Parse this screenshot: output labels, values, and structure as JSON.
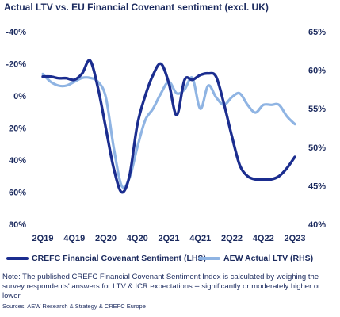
{
  "header": {
    "title": "Actual LTV vs. EU Financial Covenant sentiment (excl. UK)"
  },
  "chart_data": {
    "type": "line",
    "title": "Actual LTV vs. EU Financial Covenant sentiment (excl. UK)",
    "categories": [
      "2Q19",
      "3Q19",
      "4Q19",
      "1Q20",
      "2Q20",
      "3Q20",
      "4Q20",
      "1Q21",
      "2Q21",
      "3Q21",
      "4Q21",
      "1Q22",
      "2Q22",
      "3Q22",
      "4Q22",
      "1Q23",
      "2Q23"
    ],
    "x_tick_labels": [
      "2Q19",
      "4Q19",
      "2Q20",
      "4Q20",
      "2Q21",
      "4Q21",
      "2Q22",
      "4Q22",
      "2Q23"
    ],
    "left_axis": {
      "ticks": [
        -40,
        -20,
        0,
        20,
        40,
        60,
        80
      ],
      "tick_labels": [
        "-40%",
        "-20%",
        "0%",
        "20%",
        "40%",
        "60%",
        "80%"
      ],
      "range": [
        -40,
        80
      ],
      "inverted": true
    },
    "right_axis": {
      "ticks": [
        65,
        60,
        55,
        50,
        45,
        40
      ],
      "tick_labels": [
        "65%",
        "60%",
        "55%",
        "50%",
        "45%",
        "40%"
      ],
      "range": [
        40,
        65
      ]
    },
    "series": [
      {
        "name": "CREFC Financial Covenant Sentiment (LHS)",
        "axis": "left",
        "color": "#1b2d8f",
        "x": [
          0,
          0.5,
          1,
          1.5,
          2,
          2.5,
          3,
          3.5,
          4,
          4.5,
          5,
          5.5,
          6,
          6.5,
          7,
          7.5,
          8,
          8.5,
          9,
          9.5,
          10,
          10.5,
          11,
          11.5,
          12,
          12.5,
          13,
          13.5,
          14,
          14.5,
          15,
          15.5,
          16
        ],
        "values": [
          -12,
          -12,
          -11,
          -11,
          -10,
          -14,
          -22,
          -5,
          20,
          45,
          60,
          50,
          18,
          0,
          -13,
          -20,
          -8,
          12,
          -10,
          -10,
          -13,
          -14,
          -12,
          5,
          25,
          43,
          50,
          52,
          52,
          52,
          50,
          45,
          38
        ]
      },
      {
        "name": "AEW Actual LTV (RHS)",
        "axis": "right",
        "color": "#8fb4e3",
        "x": [
          0,
          0.5,
          1,
          1.5,
          2,
          2.5,
          3,
          3.5,
          4,
          4.5,
          5,
          5.5,
          6,
          6.5,
          7,
          7.5,
          8,
          8.5,
          9,
          9.5,
          10,
          10.5,
          11,
          11.5,
          12,
          12.5,
          13,
          13.5,
          14,
          14.5,
          15,
          15.5,
          16
        ],
        "values": [
          59.5,
          58.5,
          58,
          58,
          58.5,
          59,
          59,
          58.5,
          56.5,
          50,
          45,
          46,
          50,
          53.5,
          55,
          57,
          58.5,
          57,
          57.5,
          59,
          55,
          58,
          56.5,
          55.5,
          56.5,
          57,
          55.5,
          54.5,
          55.5,
          55.5,
          55.5,
          54,
          53
        ]
      }
    ]
  },
  "legend": {
    "items": [
      {
        "label": "CREFC Financial Covenant Sentiment (LHS)",
        "color": "#1b2d8f"
      },
      {
        "label": "AEW Actual LTV (RHS)",
        "color": "#8fb4e3"
      }
    ]
  },
  "footer": {
    "note": "Note: The published CREFC Financial Covenant Sentiment Index is calculated by weighing the survey respondents' answers for LTV & ICR expectations -- significantly or moderately higher or lower",
    "sources": "Sources: AEW Research & Strategy & CREFC Europe"
  }
}
